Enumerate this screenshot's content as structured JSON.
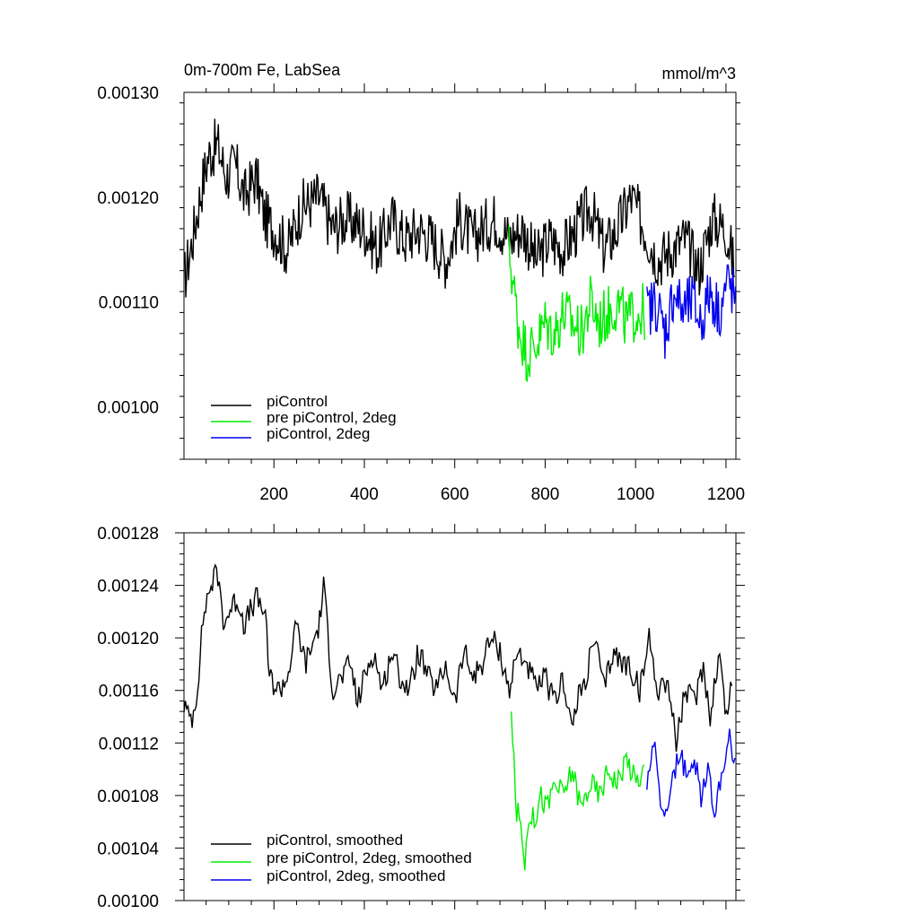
{
  "chart_data": [
    {
      "type": "line",
      "title": "0m-700m Fe, LabSea",
      "units": "mmol/m^3",
      "xlim": [
        1,
        1222
      ],
      "ylim": [
        0.00095,
        0.0013
      ],
      "x_ticks": [
        200,
        400,
        600,
        800,
        1000,
        1200
      ],
      "x_tick_labels": [
        "200",
        "400",
        "600",
        "800",
        "1000",
        "1200"
      ],
      "y_ticks": [
        0.001,
        0.0011,
        0.0012,
        0.0013
      ],
      "y_tick_labels": [
        "0.00100",
        "0.00110",
        "0.00120",
        "0.00130"
      ],
      "legend_position": "bottom-left",
      "series": [
        {
          "name": "piControl",
          "color": "#000000",
          "x": [
            1,
            20,
            40,
            55,
            75,
            95,
            115,
            135,
            160,
            180,
            200,
            230,
            260,
            300,
            330,
            360,
            400,
            430,
            460,
            490,
            520,
            550,
            580,
            610,
            640,
            660,
            690,
            720,
            750,
            780,
            810,
            840,
            870,
            900,
            930,
            960,
            990,
            1020,
            1050,
            1080,
            1110,
            1140,
            1170,
            1200,
            1220
          ],
          "values": [
            0.00112,
            0.00116,
            0.00121,
            0.00124,
            0.00125,
            0.00122,
            0.00123,
            0.0012,
            0.00122,
            0.00118,
            0.00117,
            0.00115,
            0.00119,
            0.0012,
            0.00117,
            0.00118,
            0.00117,
            0.00115,
            0.00118,
            0.00116,
            0.00117,
            0.00116,
            0.00114,
            0.00118,
            0.00116,
            0.00117,
            0.00118,
            0.00116,
            0.00117,
            0.00114,
            0.00116,
            0.00115,
            0.00117,
            0.00119,
            0.00115,
            0.00117,
            0.0012,
            0.00117,
            0.00114,
            0.00115,
            0.00116,
            0.00113,
            0.00118,
            0.00117,
            0.00113
          ]
        },
        {
          "name": "pre piControl, 2deg",
          "color": "#00ee00",
          "x": [
            720,
            740,
            760,
            780,
            800,
            820,
            840,
            860,
            880,
            900,
            920,
            940,
            960,
            980,
            1000,
            1020
          ],
          "values": [
            0.00115,
            0.00108,
            0.00105,
            0.00106,
            0.00108,
            0.00107,
            0.00109,
            0.00108,
            0.00107,
            0.0011,
            0.00108,
            0.00109,
            0.0011,
            0.00108,
            0.00109,
            0.00109
          ]
        },
        {
          "name": "piControl, 2deg",
          "color": "#0000ee",
          "x": [
            1025,
            1045,
            1065,
            1085,
            1105,
            1125,
            1145,
            1165,
            1185,
            1205,
            1222
          ],
          "values": [
            0.00109,
            0.0011,
            0.00107,
            0.00111,
            0.00109,
            0.0011,
            0.00108,
            0.00111,
            0.00109,
            0.00112,
            0.0011
          ]
        }
      ]
    },
    {
      "type": "line",
      "xlim": [
        1,
        1222
      ],
      "ylim": [
        0.001,
        0.00128
      ],
      "y_ticks": [
        0.001,
        0.00104,
        0.00108,
        0.00112,
        0.00116,
        0.0012,
        0.00124,
        0.00128
      ],
      "y_tick_labels": [
        "0.00100",
        "0.00104",
        "0.00108",
        "0.00112",
        "0.00116",
        "0.00120",
        "0.00124",
        "0.00128"
      ],
      "legend_position": "bottom-left",
      "series": [
        {
          "name": "piControl, smoothed",
          "color": "#000000",
          "x": [
            1,
            10,
            20,
            30,
            45,
            60,
            75,
            90,
            100,
            120,
            135,
            160,
            180,
            190,
            210,
            230,
            250,
            270,
            300,
            310,
            330,
            350,
            370,
            385,
            400,
            420,
            440,
            460,
            480,
            500,
            520,
            540,
            560,
            580,
            600,
            620,
            640,
            660,
            680,
            700,
            720,
            740,
            760,
            780,
            800,
            820,
            840,
            860,
            870,
            890,
            910,
            930,
            950,
            970,
            985,
            1010,
            1030,
            1050,
            1070,
            1090,
            1110,
            1130,
            1150,
            1165,
            1185,
            1200,
            1215
          ],
          "values": [
            0.00115,
            0.00114,
            0.00114,
            0.00116,
            0.00122,
            0.00124,
            0.00125,
            0.00121,
            0.00122,
            0.00123,
            0.00121,
            0.00123,
            0.00122,
            0.00117,
            0.00116,
            0.00117,
            0.00121,
            0.00118,
            0.00121,
            0.00124,
            0.00116,
            0.00117,
            0.00118,
            0.00115,
            0.00117,
            0.00119,
            0.00116,
            0.00119,
            0.00117,
            0.00116,
            0.00119,
            0.00117,
            0.00116,
            0.00118,
            0.00115,
            0.00119,
            0.00117,
            0.00118,
            0.0012,
            0.00119,
            0.00116,
            0.00119,
            0.00118,
            0.00116,
            0.00117,
            0.00115,
            0.00117,
            0.00113,
            0.00115,
            0.00117,
            0.0012,
            0.00116,
            0.00119,
            0.00118,
            0.00118,
            0.00116,
            0.0012,
            0.00116,
            0.00117,
            0.00112,
            0.00116,
            0.00115,
            0.00118,
            0.00114,
            0.00119,
            0.00114,
            0.00117
          ]
        },
        {
          "name": "pre piControl, 2deg, smoothed",
          "color": "#00ee00",
          "x": [
            725,
            735,
            745,
            755,
            765,
            775,
            790,
            805,
            820,
            840,
            860,
            880,
            900,
            920,
            940,
            960,
            980,
            1000,
            1020
          ],
          "values": [
            0.00115,
            0.00107,
            0.00106,
            0.00103,
            0.00107,
            0.00106,
            0.00108,
            0.00107,
            0.00109,
            0.00108,
            0.0011,
            0.00107,
            0.00109,
            0.00108,
            0.0011,
            0.00109,
            0.00111,
            0.00109,
            0.0011
          ]
        },
        {
          "name": "piControl, 2deg, smoothed",
          "color": "#0000ee",
          "x": [
            1025,
            1040,
            1055,
            1070,
            1085,
            1100,
            1115,
            1130,
            1145,
            1160,
            1175,
            1190,
            1205,
            1220
          ],
          "values": [
            0.00109,
            0.00112,
            0.00108,
            0.00106,
            0.0011,
            0.00111,
            0.00109,
            0.00111,
            0.00108,
            0.0011,
            0.00107,
            0.00109,
            0.00113,
            0.0011
          ]
        }
      ]
    }
  ]
}
